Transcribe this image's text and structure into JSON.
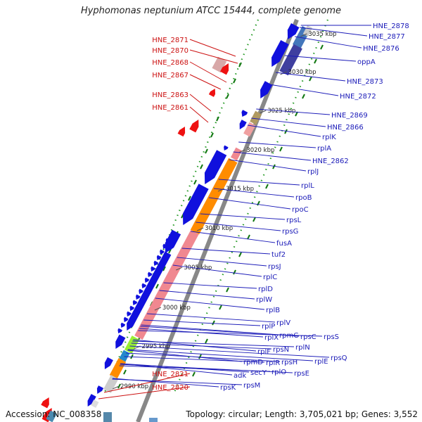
{
  "title": "Hyphomonas neptunium ATCC 15444, complete genome",
  "footer": {
    "accession": "Accession: NC_008358",
    "topology": "Topology: circular; Length: 3,705,021 bp; Genes: 3,552"
  },
  "colors": {
    "forward": "#1010dd",
    "reverse": "#ee1111",
    "rna": "#f08890",
    "orange": "#ff8c00",
    "label_blue": "#1a1ab8",
    "label_red": "#cc1111",
    "gc_dots": "#229922",
    "backbone": "#888888"
  },
  "scale_ticks": [
    {
      "label": "3035 kbp"
    },
    {
      "label": "3030 kbp"
    },
    {
      "label": "3025 kbp"
    },
    {
      "label": "3020 kbp"
    },
    {
      "label": "3015 kbp"
    },
    {
      "label": "3010 kbp"
    },
    {
      "label": "3005 kbp"
    },
    {
      "label": "3000 kbp"
    },
    {
      "label": "2995 kbp"
    },
    {
      "label": "2990 kbp"
    }
  ],
  "labels_left": [
    "HNE_2871",
    "HNE_2870",
    "HNE_2868",
    "HNE_2867",
    "HNE_2863",
    "HNE_2861",
    "HNE_2821",
    "HNE_2820"
  ],
  "labels_right": [
    "HNE_2878",
    "HNE_2877",
    "HNE_2876",
    "oppA",
    "HNE_2873",
    "HNE_2872",
    "HNE_2869",
    "HNE_2866",
    "rplK",
    "rplA",
    "HNE_2862",
    "rplJ",
    "rplL",
    "rpoB",
    "rpoC",
    "rpsL",
    "rpsG",
    "fusA",
    "tuf2",
    "rpsJ",
    "rplC",
    "rplD",
    "rplW",
    "rplB",
    "rpsS",
    "rplV",
    "rpsC",
    "rplP",
    "rpmC",
    "rpsQ",
    "rplN",
    "rplX",
    "rplE",
    "rpsN",
    "rpsH",
    "rplF",
    "rplR",
    "rpsE",
    "rpmD",
    "rplO",
    "secY",
    "adk",
    "rpsM",
    "rpsK"
  ]
}
